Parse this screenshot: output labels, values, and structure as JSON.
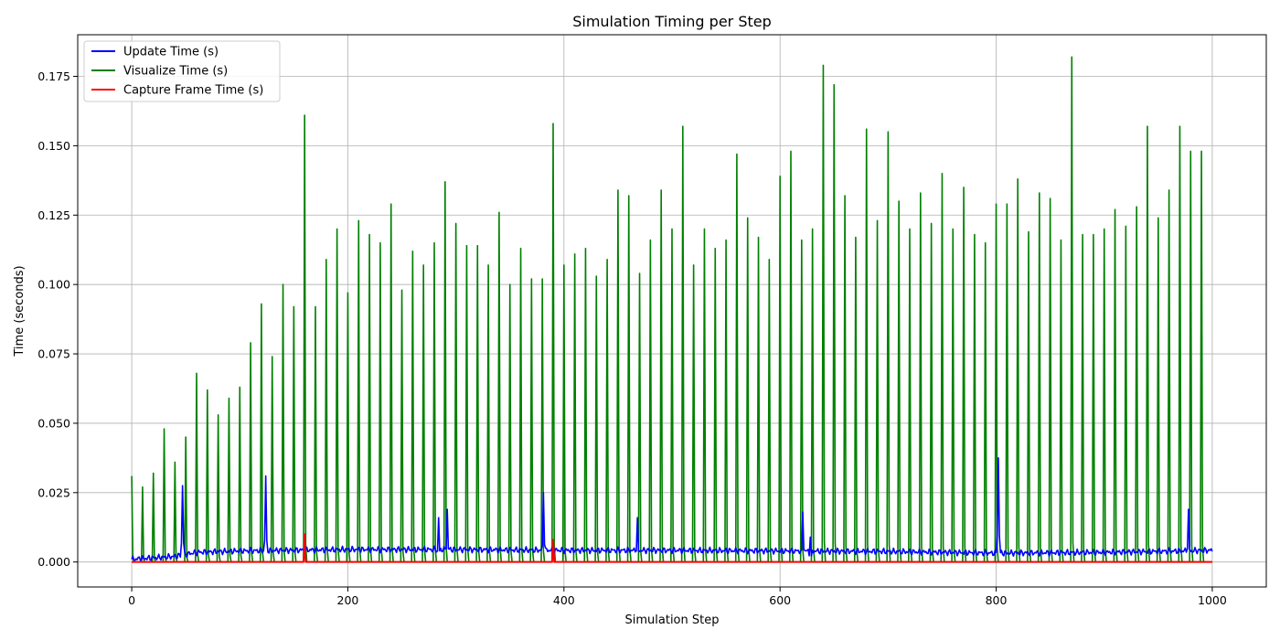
{
  "chart_data": {
    "type": "line",
    "title": "Simulation Timing per Step",
    "xlabel": "Simulation Step",
    "ylabel": "Time (seconds)",
    "xlim": [
      -50,
      1050
    ],
    "ylim": [
      -0.009,
      0.19
    ],
    "xticks": [
      0,
      200,
      400,
      600,
      800,
      1000
    ],
    "xtick_labels": [
      "0",
      "200",
      "400",
      "600",
      "800",
      "1000"
    ],
    "yticks": [
      0.0,
      0.025,
      0.05,
      0.075,
      0.1,
      0.125,
      0.15,
      0.175
    ],
    "ytick_labels": [
      "0.000",
      "0.025",
      "0.050",
      "0.075",
      "0.100",
      "0.125",
      "0.150",
      "0.175"
    ],
    "grid": true,
    "legend_position": "top-left",
    "series": [
      {
        "name": "Update Time (s)",
        "color": "#0000ff",
        "baseline_profile": {
          "x": [
            0,
            40,
            60,
            100,
            200,
            300,
            400,
            500,
            600,
            700,
            800,
            900,
            1000
          ],
          "y": [
            0.001,
            0.002,
            0.0035,
            0.004,
            0.0045,
            0.0045,
            0.0042,
            0.0042,
            0.004,
            0.0038,
            0.0032,
            0.0035,
            0.0042
          ]
        },
        "spikes": [
          {
            "x": 47,
            "y": 0.0275
          },
          {
            "x": 124,
            "y": 0.031
          },
          {
            "x": 284,
            "y": 0.016
          },
          {
            "x": 292,
            "y": 0.019
          },
          {
            "x": 381,
            "y": 0.025
          },
          {
            "x": 468,
            "y": 0.016
          },
          {
            "x": 621,
            "y": 0.018
          },
          {
            "x": 628,
            "y": 0.009
          },
          {
            "x": 802,
            "y": 0.0375
          },
          {
            "x": 978,
            "y": 0.019
          }
        ]
      },
      {
        "name": "Visualize Time (s)",
        "color": "#008000",
        "spike_x": [
          0,
          10,
          20,
          30,
          40,
          50,
          60,
          70,
          80,
          90,
          100,
          110,
          120,
          130,
          140,
          150,
          160,
          170,
          180,
          190,
          200,
          210,
          220,
          230,
          240,
          250,
          260,
          270,
          280,
          290,
          300,
          310,
          320,
          330,
          340,
          350,
          360,
          370,
          380,
          390,
          400,
          410,
          420,
          430,
          440,
          450,
          460,
          470,
          480,
          490,
          500,
          510,
          520,
          530,
          540,
          550,
          560,
          570,
          580,
          590,
          600,
          610,
          620,
          630,
          640,
          650,
          660,
          670,
          680,
          690,
          700,
          710,
          720,
          730,
          740,
          750,
          760,
          770,
          780,
          790,
          800,
          810,
          820,
          830,
          840,
          850,
          860,
          870,
          880,
          890,
          900,
          910,
          920,
          930,
          940,
          950,
          960,
          970,
          980,
          990
        ],
        "spike_y": [
          0.031,
          0.027,
          0.032,
          0.048,
          0.036,
          0.045,
          0.068,
          0.062,
          0.053,
          0.059,
          0.063,
          0.079,
          0.093,
          0.074,
          0.1,
          0.092,
          0.161,
          0.092,
          0.109,
          0.12,
          0.097,
          0.123,
          0.118,
          0.115,
          0.129,
          0.098,
          0.112,
          0.107,
          0.115,
          0.137,
          0.122,
          0.114,
          0.114,
          0.107,
          0.126,
          0.1,
          0.113,
          0.102,
          0.102,
          0.158,
          0.107,
          0.111,
          0.113,
          0.103,
          0.109,
          0.134,
          0.132,
          0.104,
          0.116,
          0.134,
          0.12,
          0.157,
          0.107,
          0.12,
          0.113,
          0.116,
          0.147,
          0.124,
          0.117,
          0.109,
          0.139,
          0.148,
          0.116,
          0.12,
          0.179,
          0.172,
          0.132,
          0.117,
          0.156,
          0.123,
          0.155,
          0.13,
          0.12,
          0.133,
          0.122,
          0.14,
          0.12,
          0.135,
          0.118,
          0.115,
          0.129,
          0.129,
          0.138,
          0.119,
          0.133,
          0.131,
          0.116,
          0.182,
          0.118,
          0.118,
          0.12,
          0.127,
          0.121,
          0.128,
          0.157,
          0.124,
          0.134,
          0.157,
          0.148,
          0.148
        ],
        "baseline": 0.0
      },
      {
        "name": "Capture Frame Time (s)",
        "color": "#ff0000",
        "baseline": 0.0,
        "spikes": [
          {
            "x": 160,
            "y": 0.01
          },
          {
            "x": 390,
            "y": 0.008
          }
        ]
      }
    ]
  }
}
